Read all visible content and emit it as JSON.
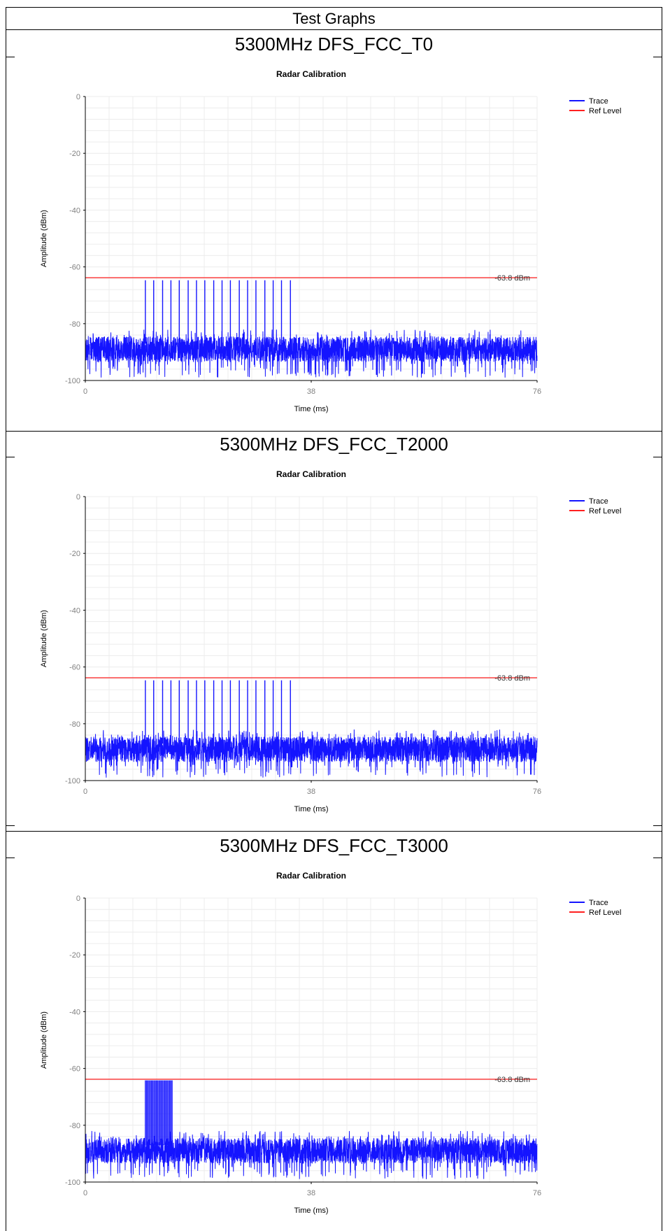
{
  "header": {
    "title": "Test Graphs"
  },
  "sections": [
    {
      "title": "5300MHz DFS_FCC_T0"
    },
    {
      "title": "5300MHz DFS_FCC_T2000"
    },
    {
      "title": "5300MHz DFS_FCC_T3000"
    }
  ],
  "colors": {
    "trace": "#1414ff",
    "ref_level": "#ff2020",
    "grid": "#ececec",
    "axis": "#000000",
    "tick_text": "#808080"
  },
  "chart_data": [
    {
      "type": "line",
      "title": "Radar Calibration",
      "xlabel": "Time (ms)",
      "ylabel": "Amplitude (dBm)",
      "xlim": [
        0,
        76
      ],
      "ylim": [
        -100,
        0
      ],
      "x_ticks": [
        0,
        38,
        76
      ],
      "y_ticks": [
        0,
        -20,
        -40,
        -60,
        -80,
        -100
      ],
      "grid": true,
      "legend_position": "top-right",
      "ref_level": {
        "value": -63.8,
        "label": "-63.8 dBm"
      },
      "series": [
        {
          "name": "Trace",
          "color": "#1414ff",
          "noise_floor_mean": -89,
          "noise_floor_range": [
            -99,
            -82
          ],
          "pulse_peak": -64.7,
          "pulses_x": [
            10.1,
            11.5,
            13.0,
            14.4,
            15.8,
            17.3,
            18.7,
            20.1,
            21.6,
            23.0,
            24.4,
            25.9,
            27.3,
            28.7,
            30.2,
            31.6,
            33.0,
            34.5
          ]
        },
        {
          "name": "Ref Level",
          "color": "#ff2020",
          "values_constant": -63.8
        }
      ]
    },
    {
      "type": "line",
      "title": "Radar Calibration",
      "xlabel": "Time (ms)",
      "ylabel": "Amplitude (dBm)",
      "xlim": [
        0,
        76
      ],
      "ylim": [
        -100,
        0
      ],
      "x_ticks": [
        0,
        38,
        76
      ],
      "y_ticks": [
        0,
        -20,
        -40,
        -60,
        -80,
        -100
      ],
      "grid": true,
      "legend_position": "top-right",
      "ref_level": {
        "value": -63.8,
        "label": "-63.8 dBm"
      },
      "series": [
        {
          "name": "Trace",
          "color": "#1414ff",
          "noise_floor_mean": -89,
          "noise_floor_range": [
            -99,
            -82
          ],
          "pulse_peak": -64.7,
          "pulses_x": [
            10.1,
            11.5,
            13.0,
            14.4,
            15.8,
            17.3,
            18.7,
            20.1,
            21.6,
            23.0,
            24.4,
            25.9,
            27.3,
            28.7,
            30.2,
            31.6,
            33.0,
            34.5
          ]
        },
        {
          "name": "Ref Level",
          "color": "#ff2020",
          "values_constant": -63.8
        }
      ]
    },
    {
      "type": "line",
      "title": "Radar Calibration",
      "xlabel": "Time (ms)",
      "ylabel": "Amplitude (dBm)",
      "xlim": [
        0,
        76
      ],
      "ylim": [
        -100,
        0
      ],
      "x_ticks": [
        0,
        38,
        76
      ],
      "y_ticks": [
        0,
        -20,
        -40,
        -60,
        -80,
        -100
      ],
      "grid": true,
      "legend_position": "top-right",
      "ref_level": {
        "value": -63.8,
        "label": "-63.8 dBm"
      },
      "series": [
        {
          "name": "Trace",
          "color": "#1414ff",
          "noise_floor_mean": -89,
          "noise_floor_range": [
            -99,
            -82
          ],
          "pulse_peak": -64.2,
          "pulse_burst_x": [
            10.1,
            14.6
          ],
          "pulse_burst_count": 23
        },
        {
          "name": "Ref Level",
          "color": "#ff2020",
          "values_constant": -63.8
        }
      ]
    }
  ]
}
